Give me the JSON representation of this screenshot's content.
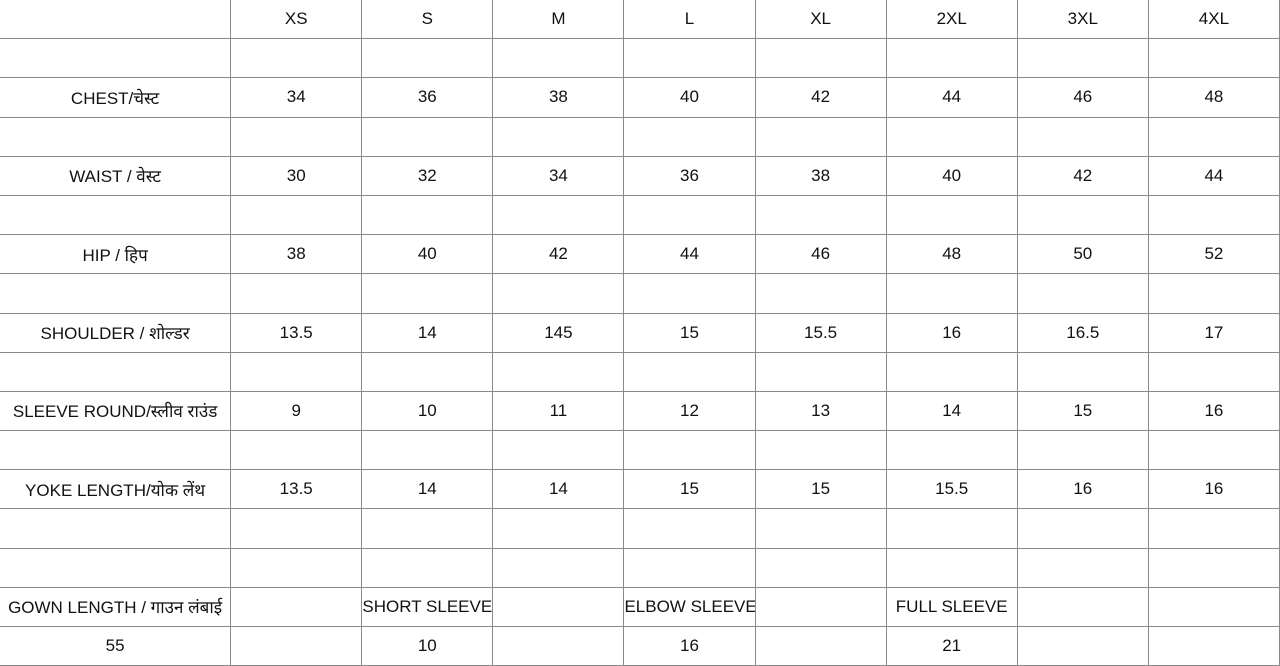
{
  "sizes": [
    "XS",
    "S",
    "M",
    "L",
    "XL",
    "2XL",
    "3XL",
    "4XL"
  ],
  "measurements": [
    {
      "label": "CHEST/चेस्ट",
      "values": [
        "34",
        "36",
        "38",
        "40",
        "42",
        "44",
        "46",
        "48"
      ]
    },
    {
      "label": "WAIST / वेस्ट",
      "values": [
        "30",
        "32",
        "34",
        "36",
        "38",
        "40",
        "42",
        "44"
      ]
    },
    {
      "label": "HIP / हिप",
      "values": [
        "38",
        "40",
        "42",
        "44",
        "46",
        "48",
        "50",
        "52"
      ]
    },
    {
      "label": "SHOULDER / शोल्डर",
      "values": [
        "13.5",
        "14",
        "145",
        "15",
        "15.5",
        "16",
        "16.5",
        "17"
      ]
    },
    {
      "label": "SLEEVE ROUND/स्लीव राउंड",
      "values": [
        "9",
        "10",
        "11",
        "12",
        "13",
        "14",
        "15",
        "16"
      ]
    },
    {
      "label": "YOKE LENGTH/योक लेंथ",
      "values": [
        "13.5",
        "14",
        "14",
        "15",
        "15",
        "15.5",
        "16",
        "16"
      ]
    }
  ],
  "bottom": {
    "gown_length_label": "GOWN LENGTH / गाउन लंबाई",
    "gown_length_value": "55",
    "short_sleeve_label": "SHORT SLEEVE",
    "short_sleeve_value": "10",
    "elbow_sleeve_label": "ELBOW SLEEVE",
    "elbow_sleeve_value": "16",
    "full_sleeve_label": "FULL SLEEVE",
    "full_sleeve_value": "21"
  }
}
